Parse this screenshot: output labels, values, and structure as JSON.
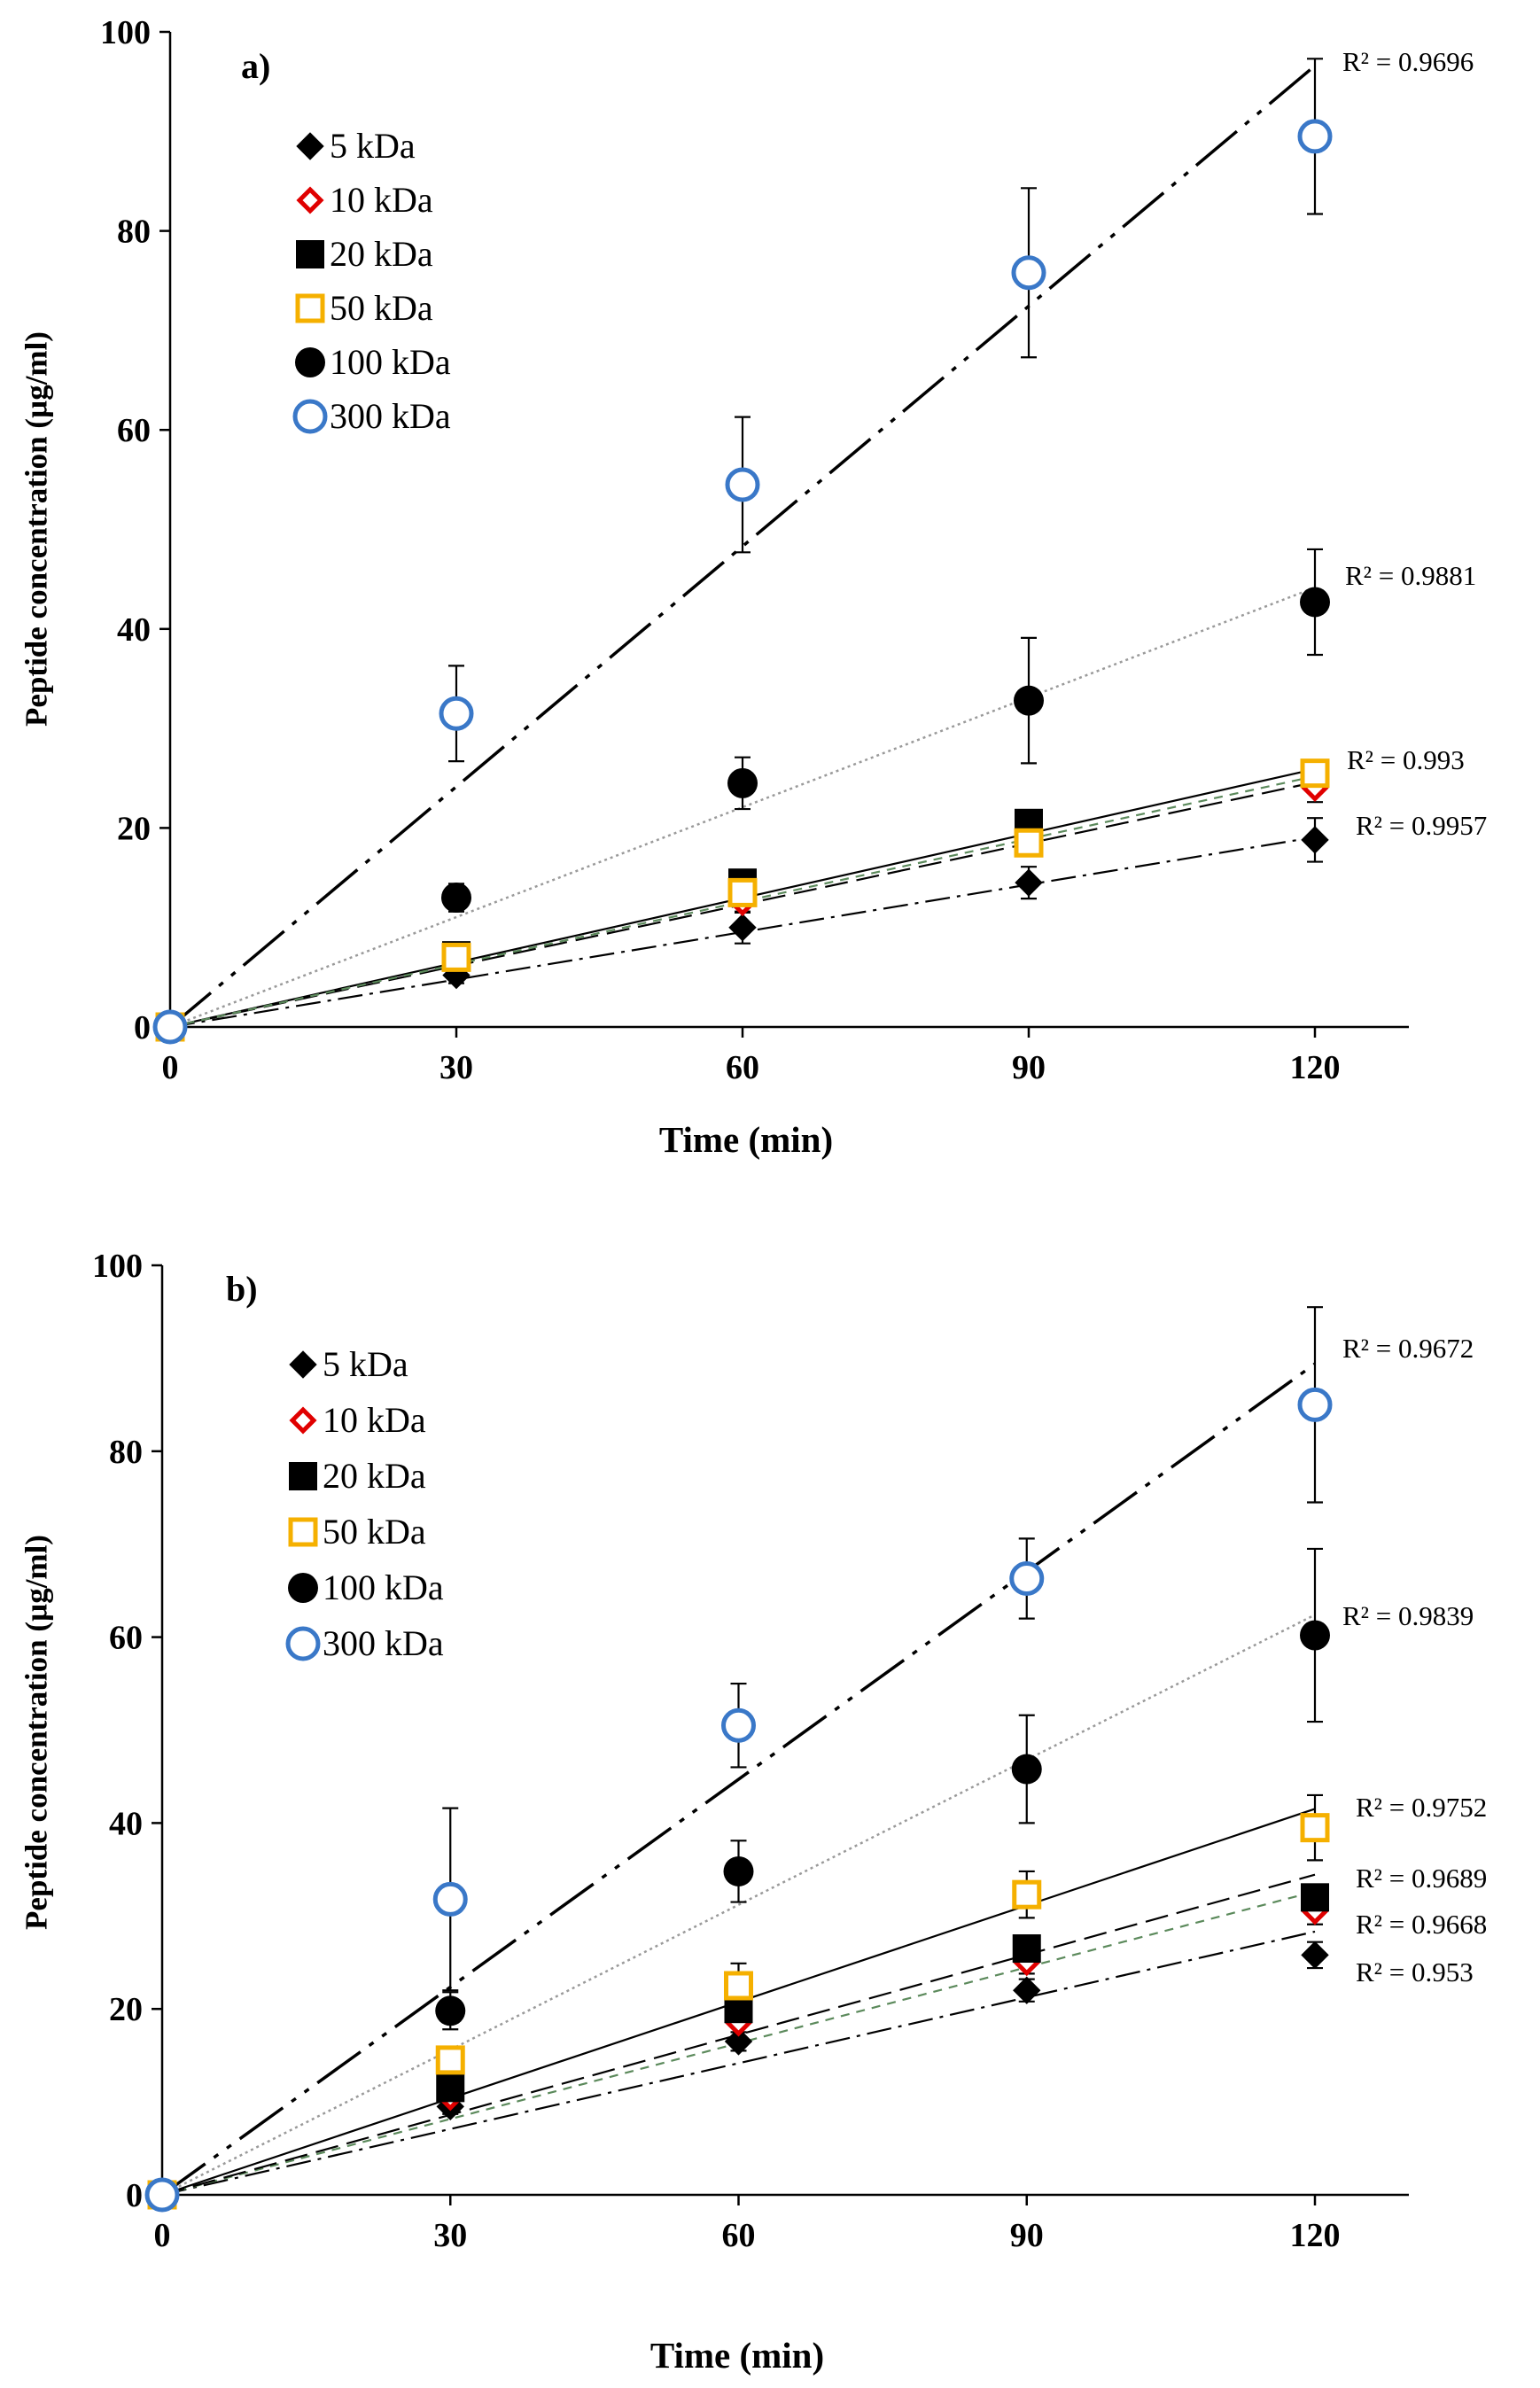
{
  "colors": {
    "black": "#000000",
    "red": "#e00000",
    "orange": "#f5b000",
    "blue": "#3a78c8",
    "green": "#5c8a5c",
    "gray": "#9a9a9a"
  },
  "chart_data": [
    {
      "type": "scatter",
      "panel_label": "a)",
      "xlabel": "Time (min)",
      "ylabel": "Peptide concentration (µg/ml)",
      "xlim": [
        0,
        130
      ],
      "ylim": [
        0,
        100
      ],
      "x_ticks": [
        "0",
        "30",
        "60",
        "90",
        "120"
      ],
      "y_ticks": [
        "0",
        "20",
        "40",
        "60",
        "80",
        "100"
      ],
      "x": [
        0,
        30,
        60,
        90,
        120
      ],
      "series": [
        {
          "name": "5 kDa",
          "marker": "diamond",
          "color": "#000000",
          "values": [
            0,
            5.2,
            10,
            14.5,
            18.8
          ],
          "errors": [
            0,
            0.8,
            1.6,
            1.6,
            2.2
          ],
          "fit_slope": 0.159,
          "r2": "R² = 0.9957",
          "line": "dashdot"
        },
        {
          "name": "10 kDa",
          "marker": "diamond-open",
          "color": "#e00000",
          "values": [
            0,
            7,
            12.5,
            19.5,
            24
          ],
          "errors": [
            0,
            0.8,
            1,
            1.2,
            1.4
          ],
          "fit_slope": 0.205,
          "r2": "",
          "line": "dash"
        },
        {
          "name": "20 kDa",
          "marker": "square",
          "color": "#000000",
          "values": [
            0,
            7.2,
            14.5,
            20.5,
            25.5
          ],
          "errors": [
            0,
            0.8,
            1,
            1.2,
            1.2
          ],
          "fit_slope": 0.216,
          "r2": "R² = 0.993",
          "line": "solid"
        },
        {
          "name": "50 kDa",
          "marker": "square-open",
          "color": "#f5b000",
          "values": [
            0,
            7,
            13.5,
            18.5,
            25.5
          ],
          "errors": [
            0,
            0.8,
            1,
            1.2,
            1.2
          ],
          "fit_slope": 0.21,
          "r2": "",
          "line": "green-dash"
        },
        {
          "name": "100 kDa",
          "marker": "circle",
          "color": "#000000",
          "values": [
            0,
            13,
            24.5,
            32.8,
            42.7
          ],
          "errors": [
            0,
            1.4,
            2.6,
            6.3,
            5.3
          ],
          "fit_slope": 0.368,
          "r2": "R² = 0.9881",
          "line": "dotted"
        },
        {
          "name": "300 kDa",
          "marker": "circle-open",
          "color": "#3a78c8",
          "values": [
            0,
            31.5,
            54.5,
            75.8,
            89.5
          ],
          "errors": [
            0,
            4.8,
            6.8,
            8.5,
            7.8
          ],
          "fit_slope": 0.805,
          "r2": "R² = 0.9696",
          "line": "dashdotdot"
        }
      ]
    },
    {
      "type": "scatter",
      "panel_label": "b)",
      "xlabel": "Time (min)",
      "ylabel": "Peptide concentration (µg/ml)",
      "xlim": [
        0,
        130
      ],
      "ylim": [
        0,
        100
      ],
      "x_ticks": [
        "0",
        "30",
        "60",
        "90",
        "120"
      ],
      "y_ticks": [
        "0",
        "20",
        "40",
        "60",
        "80",
        "100"
      ],
      "x": [
        0,
        30,
        60,
        90,
        120
      ],
      "series": [
        {
          "name": "5 kDa",
          "marker": "diamond",
          "color": "#000000",
          "values": [
            0,
            9.5,
            16.5,
            22,
            25.8
          ],
          "errors": [
            0,
            0.8,
            1,
            1.2,
            1.4
          ],
          "fit_slope": 0.236,
          "r2": "R² = 0.953",
          "line": "dashdot"
        },
        {
          "name": "10 kDa",
          "marker": "diamond-open",
          "color": "#e00000",
          "values": [
            0,
            10.5,
            18.5,
            25,
            30.5
          ],
          "errors": [
            0,
            0.8,
            1,
            1.2,
            1.4
          ],
          "fit_slope": 0.272,
          "r2": "R² = 0.9668",
          "line": "green-dash"
        },
        {
          "name": "20 kDa",
          "marker": "square",
          "color": "#000000",
          "values": [
            0,
            11.5,
            20,
            26.5,
            32
          ],
          "errors": [
            0,
            0.8,
            1,
            1.2,
            1.4
          ],
          "fit_slope": 0.287,
          "r2": "R² = 0.9689",
          "line": "dash"
        },
        {
          "name": "50 kDa",
          "marker": "square-open",
          "color": "#f5b000",
          "values": [
            0,
            14.5,
            22.5,
            32.3,
            39.5
          ],
          "errors": [
            0,
            1.2,
            2.4,
            2.5,
            3.5
          ],
          "fit_slope": 0.346,
          "r2": "R² = 0.9752",
          "line": "solid"
        },
        {
          "name": "100 kDa",
          "marker": "circle",
          "color": "#000000",
          "values": [
            0,
            19.8,
            34.8,
            45.8,
            60.2
          ],
          "errors": [
            0,
            2,
            3.3,
            5.8,
            9.3
          ],
          "fit_slope": 0.52,
          "r2": "R² = 0.9839",
          "line": "dotted"
        },
        {
          "name": "300 kDa",
          "marker": "circle-open",
          "color": "#3a78c8",
          "values": [
            0,
            31.8,
            50.5,
            66.3,
            85
          ],
          "errors": [
            0,
            9.8,
            4.5,
            4.3,
            10.5
          ],
          "fit_slope": 0.745,
          "r2": "R² = 0.9672",
          "line": "dashdotdot"
        }
      ]
    }
  ]
}
